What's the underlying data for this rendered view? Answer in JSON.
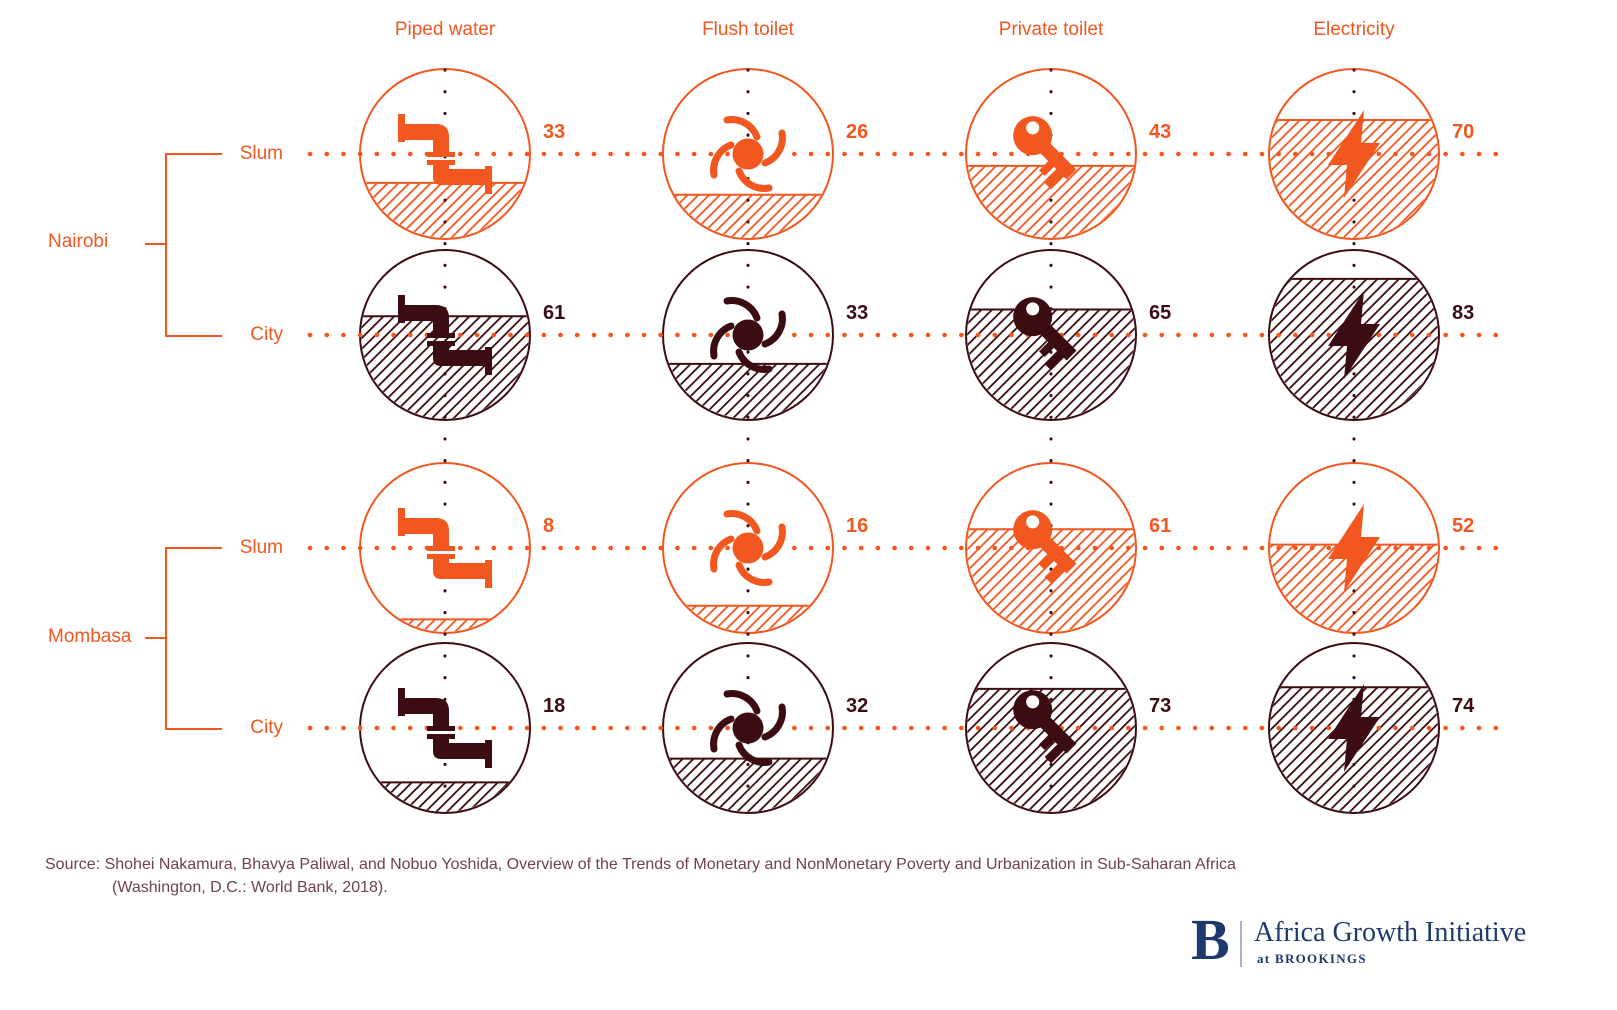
{
  "header": {
    "columns": [
      "Piped water",
      "Flush toilet",
      "Private toilet",
      "Electricity"
    ]
  },
  "groups": [
    {
      "city": "Nairobi",
      "rows": [
        {
          "label": "Slum"
        },
        {
          "label": "City"
        }
      ]
    },
    {
      "city": "Mombasa",
      "rows": [
        {
          "label": "Slum"
        },
        {
          "label": "City"
        }
      ]
    }
  ],
  "chart_data": {
    "type": "bar",
    "subtype": "icon-filled-circles",
    "unit": "percent",
    "value_range": [
      0,
      100
    ],
    "categories": [
      "Piped water",
      "Flush toilet",
      "Private toilet",
      "Electricity"
    ],
    "series": [
      {
        "name": "Nairobi Slum",
        "city": "Nairobi",
        "area": "Slum",
        "values": [
          33,
          26,
          43,
          70
        ]
      },
      {
        "name": "Nairobi City",
        "city": "Nairobi",
        "area": "City",
        "values": [
          61,
          33,
          65,
          83
        ]
      },
      {
        "name": "Mombasa Slum",
        "city": "Mombasa",
        "area": "Slum",
        "values": [
          8,
          16,
          61,
          52
        ]
      },
      {
        "name": "Mombasa City",
        "city": "Mombasa",
        "area": "City",
        "values": [
          18,
          32,
          73,
          74
        ]
      }
    ],
    "icons": [
      "pipe-icon",
      "flush-swirl-icon",
      "key-icon",
      "lightning-bolt-icon"
    ],
    "legend_position": "none",
    "grid": false,
    "fill_style": "diagonal-hatch-from-bottom"
  },
  "source": {
    "line1": "Source: Shohei Nakamura, Bhavya Paliwal, and Nobuo Yoshida, Overview of the Trends of Monetary and NonMonetary Poverty and Urbanization in Sub-Saharan Africa",
    "line2": "(Washington, D.C.: World Bank, 2018)."
  },
  "logo": {
    "monogram": "B",
    "name": "Africa Growth Initiative",
    "tagline": "at BROOKINGS"
  },
  "colors": {
    "slum": "#F1571F",
    "city": "#3B0C12",
    "row_dotted_line": "#F1571F",
    "column_dotted_line": "#3B0C12",
    "navy": "#1E3A6C",
    "source_text": "#6E434B",
    "logo_divider": "#A6B4CD"
  }
}
